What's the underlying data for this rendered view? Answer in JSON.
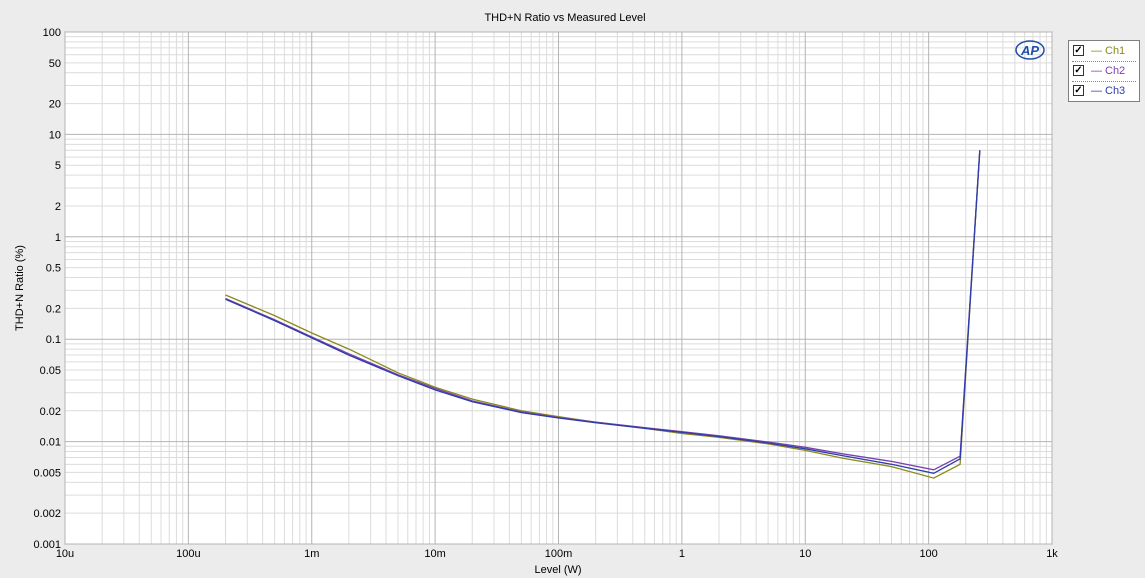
{
  "chart_data": {
    "type": "line",
    "title": "THD+N Ratio vs Measured Level",
    "xlabel": "Level (W)",
    "ylabel": "THD+N Ratio (%)",
    "x_scale": "log",
    "y_scale": "log",
    "xlim": [
      1e-05,
      1000
    ],
    "ylim": [
      0.001,
      100
    ],
    "grid": true,
    "legend_position": "right",
    "x_ticks": [
      {
        "value": 1e-05,
        "label": "10u"
      },
      {
        "value": 0.0001,
        "label": "100u"
      },
      {
        "value": 0.001,
        "label": "1m"
      },
      {
        "value": 0.01,
        "label": "10m"
      },
      {
        "value": 0.1,
        "label": "100m"
      },
      {
        "value": 1,
        "label": "1"
      },
      {
        "value": 10,
        "label": "10"
      },
      {
        "value": 100,
        "label": "100"
      },
      {
        "value": 1000,
        "label": "1k"
      }
    ],
    "y_ticks": [
      {
        "value": 100,
        "label": "100"
      },
      {
        "value": 50,
        "label": "50"
      },
      {
        "value": 20,
        "label": "20"
      },
      {
        "value": 10,
        "label": "10"
      },
      {
        "value": 5,
        "label": "5"
      },
      {
        "value": 2,
        "label": "2"
      },
      {
        "value": 1,
        "label": "1"
      },
      {
        "value": 0.5,
        "label": "0.5"
      },
      {
        "value": 0.2,
        "label": "0.2"
      },
      {
        "value": 0.1,
        "label": "0.1"
      },
      {
        "value": 0.05,
        "label": "0.05"
      },
      {
        "value": 0.02,
        "label": "0.02"
      },
      {
        "value": 0.01,
        "label": "0.01"
      },
      {
        "value": 0.005,
        "label": "0.005"
      },
      {
        "value": 0.002,
        "label": "0.002"
      },
      {
        "value": 0.001,
        "label": "0.001"
      }
    ],
    "series": [
      {
        "name": "Ch1",
        "color": "#8a8a1a",
        "x": [
          0.0002,
          0.0005,
          0.001,
          0.002,
          0.005,
          0.01,
          0.02,
          0.05,
          0.1,
          0.2,
          0.5,
          1,
          2,
          5,
          10,
          20,
          50,
          110,
          180,
          260
        ],
        "y": [
          0.27,
          0.17,
          0.115,
          0.08,
          0.047,
          0.034,
          0.026,
          0.02,
          0.0175,
          0.0155,
          0.0135,
          0.012,
          0.011,
          0.0095,
          0.0082,
          0.0069,
          0.0057,
          0.0044,
          0.006,
          7
        ]
      },
      {
        "name": "Ch2",
        "color": "#7b3fb0",
        "x": [
          0.0002,
          0.0005,
          0.001,
          0.002,
          0.005,
          0.01,
          0.02,
          0.05,
          0.1,
          0.2,
          0.5,
          1,
          2,
          5,
          10,
          20,
          50,
          110,
          180,
          260
        ],
        "y": [
          0.25,
          0.155,
          0.105,
          0.072,
          0.045,
          0.033,
          0.025,
          0.0195,
          0.0172,
          0.0155,
          0.0137,
          0.0125,
          0.0114,
          0.0099,
          0.0088,
          0.0076,
          0.0064,
          0.0053,
          0.0072,
          7
        ]
      },
      {
        "name": "Ch3",
        "color": "#2c3ea8",
        "x": [
          0.0002,
          0.0005,
          0.001,
          0.002,
          0.005,
          0.01,
          0.02,
          0.05,
          0.1,
          0.2,
          0.5,
          1,
          2,
          5,
          10,
          20,
          50,
          110,
          180,
          260
        ],
        "y": [
          0.245,
          0.152,
          0.103,
          0.07,
          0.044,
          0.032,
          0.0245,
          0.0192,
          0.017,
          0.0153,
          0.0135,
          0.0123,
          0.0112,
          0.0097,
          0.0085,
          0.0073,
          0.006,
          0.0049,
          0.0068,
          7
        ]
      }
    ]
  },
  "legend": {
    "items": [
      {
        "checked_mark": "✓",
        "dash": "—",
        "label": "Ch1",
        "color": "#8a8a1a"
      },
      {
        "checked_mark": "✓",
        "dash": "—",
        "label": "Ch2",
        "color": "#7b3fb0"
      },
      {
        "checked_mark": "✓",
        "dash": "—",
        "label": "Ch3",
        "color": "#2c3ea8"
      }
    ]
  },
  "logo": {
    "text": "AP",
    "color": "#1f4fa8"
  }
}
